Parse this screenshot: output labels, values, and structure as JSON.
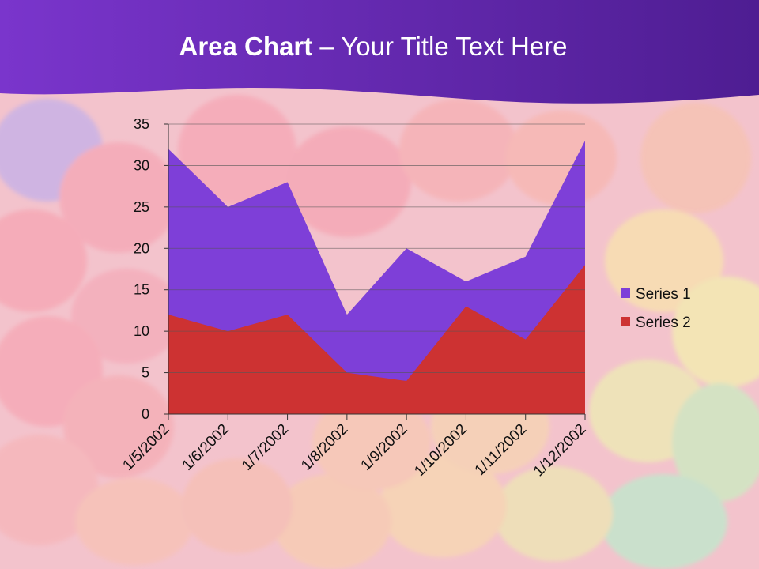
{
  "slide": {
    "title_bold": "Area Chart",
    "title_rest": " – Your Title Text Here"
  },
  "colors": {
    "header": "#6a2bc0",
    "series1": "#7e3fd8",
    "series2": "#cd3232"
  },
  "chart_data": {
    "type": "area",
    "stacked": false,
    "categories": [
      "1/5/2002",
      "1/6/2002",
      "1/7/2002",
      "1/8/2002",
      "1/9/2002",
      "1/10/2002",
      "1/11/2002",
      "1/12/2002"
    ],
    "series": [
      {
        "name": "Series 1",
        "values": [
          32,
          25,
          28,
          12,
          20,
          16,
          19,
          33
        ],
        "color": "#7e3fd8"
      },
      {
        "name": "Series 2",
        "values": [
          12,
          10,
          12,
          5,
          4,
          13,
          9,
          18
        ],
        "color": "#cd3232"
      }
    ],
    "ylim": [
      0,
      35
    ],
    "yticks": [
      0,
      5,
      10,
      15,
      20,
      25,
      30,
      35
    ],
    "grid": true,
    "legend": "right"
  }
}
